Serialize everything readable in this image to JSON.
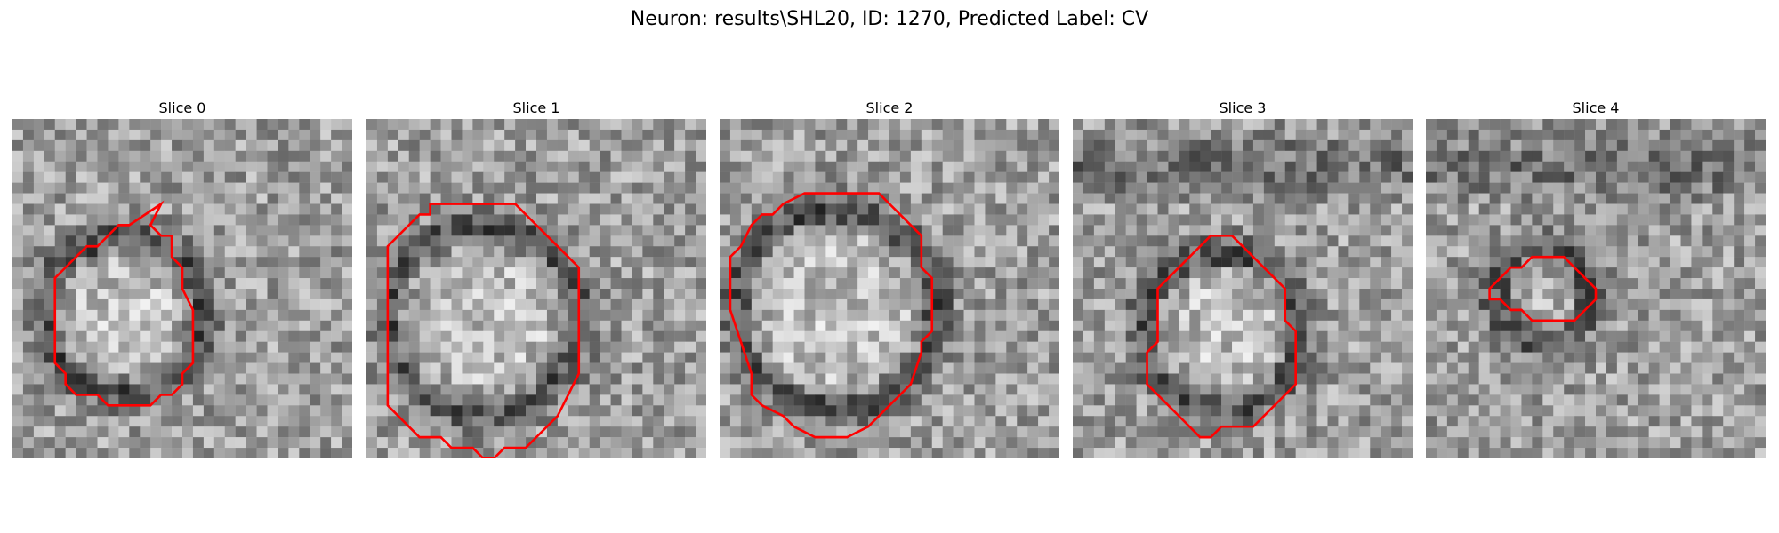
{
  "figure": {
    "title": "Neuron: results\\SHL20, ID: 1270, Predicted Label: CV"
  },
  "panels": [
    {
      "title": "Slice 0",
      "contour": [
        [
          14,
          8
        ],
        [
          11,
          10
        ],
        [
          10,
          10
        ],
        [
          8,
          12
        ],
        [
          7,
          12
        ],
        [
          5,
          14
        ],
        [
          4,
          15
        ],
        [
          4,
          23
        ],
        [
          5,
          24
        ],
        [
          5,
          25
        ],
        [
          6,
          26
        ],
        [
          8,
          26
        ],
        [
          9,
          27
        ],
        [
          13,
          27
        ],
        [
          14,
          26
        ],
        [
          15,
          26
        ],
        [
          16,
          25
        ],
        [
          16,
          24
        ],
        [
          17,
          23
        ],
        [
          17,
          18
        ],
        [
          16,
          16
        ],
        [
          16,
          14
        ],
        [
          15,
          13
        ],
        [
          15,
          11
        ],
        [
          14,
          11
        ],
        [
          13,
          10
        ]
      ]
    },
    {
      "title": "Slice 1",
      "contour": [
        [
          6,
          8
        ],
        [
          6,
          9
        ],
        [
          5,
          9
        ],
        [
          4,
          10
        ],
        [
          2,
          12
        ],
        [
          2,
          27
        ],
        [
          5,
          30
        ],
        [
          7,
          30
        ],
        [
          8,
          31
        ],
        [
          10,
          31
        ],
        [
          11,
          32
        ],
        [
          12,
          32
        ],
        [
          13,
          31
        ],
        [
          15,
          31
        ],
        [
          16,
          30
        ],
        [
          17,
          29
        ],
        [
          18,
          28
        ],
        [
          19,
          26
        ],
        [
          20,
          24
        ],
        [
          20,
          14
        ],
        [
          19,
          13
        ],
        [
          17,
          11
        ],
        [
          16,
          10
        ],
        [
          14,
          8
        ]
      ]
    },
    {
      "title": "Slice 2",
      "contour": [
        [
          8,
          7
        ],
        [
          6,
          8
        ],
        [
          5,
          9
        ],
        [
          4,
          9
        ],
        [
          3,
          10
        ],
        [
          2,
          12
        ],
        [
          1,
          13
        ],
        [
          1,
          18
        ],
        [
          2,
          21
        ],
        [
          3,
          24
        ],
        [
          3,
          26
        ],
        [
          4,
          27
        ],
        [
          6,
          28
        ],
        [
          7,
          29
        ],
        [
          9,
          30
        ],
        [
          12,
          30
        ],
        [
          14,
          29
        ],
        [
          15,
          28
        ],
        [
          16,
          27
        ],
        [
          18,
          25
        ],
        [
          19,
          22
        ],
        [
          19,
          21
        ],
        [
          20,
          20
        ],
        [
          20,
          15
        ],
        [
          19,
          14
        ],
        [
          19,
          11
        ],
        [
          18,
          10
        ],
        [
          16,
          8
        ],
        [
          15,
          7
        ]
      ]
    },
    {
      "title": "Slice 3",
      "contour": [
        [
          13,
          11
        ],
        [
          12,
          12
        ],
        [
          11,
          13
        ],
        [
          9,
          15
        ],
        [
          8,
          16
        ],
        [
          8,
          21
        ],
        [
          7,
          22
        ],
        [
          7,
          25
        ],
        [
          9,
          27
        ],
        [
          10,
          28
        ],
        [
          11,
          29
        ],
        [
          12,
          30
        ],
        [
          13,
          30
        ],
        [
          14,
          29
        ],
        [
          17,
          29
        ],
        [
          19,
          27
        ],
        [
          20,
          26
        ],
        [
          21,
          25
        ],
        [
          21,
          20
        ],
        [
          20,
          19
        ],
        [
          20,
          16
        ],
        [
          19,
          15
        ],
        [
          17,
          13
        ],
        [
          15,
          11
        ]
      ]
    },
    {
      "title": "Slice 4",
      "contour": [
        [
          11,
          13
        ],
        [
          10,
          13
        ],
        [
          9,
          14
        ],
        [
          8,
          14
        ],
        [
          7,
          15
        ],
        [
          6,
          16
        ],
        [
          6,
          17
        ],
        [
          7,
          17
        ],
        [
          8,
          18
        ],
        [
          9,
          18
        ],
        [
          10,
          19
        ],
        [
          14,
          19
        ],
        [
          15,
          18
        ],
        [
          16,
          17
        ],
        [
          16,
          16
        ],
        [
          15,
          15
        ],
        [
          14,
          14
        ],
        [
          13,
          13
        ]
      ]
    }
  ],
  "colors": {
    "contour": "#ff0000"
  }
}
